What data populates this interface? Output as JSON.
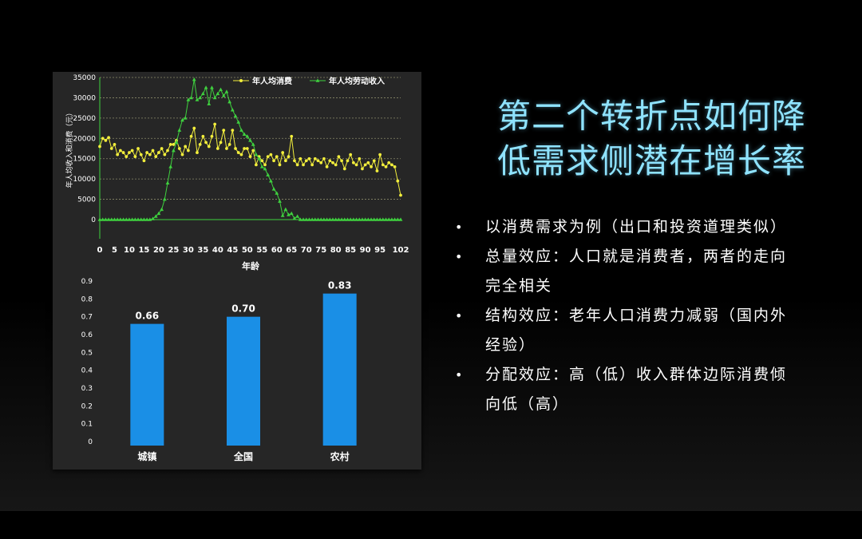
{
  "slide": {
    "title_line1": "第二个转折点如何降",
    "title_line2": "低需求侧潜在增长率",
    "bullets": [
      "以消费需求为例（出口和投资道理类似）",
      "总量效应：人口就是消费者，两者的走向完全相关",
      "结构效应：老年人口消费力减弱（国内外经验）",
      "分配效应：高（低）收入群体边际消费倾向低（高）"
    ],
    "bullet_symbol": "•"
  },
  "chart_data": [
    {
      "type": "line",
      "title": "",
      "xlabel": "年龄",
      "ylabel": "年人均收入和消费（元）",
      "xlim": [
        0,
        102
      ],
      "ylim": [
        0,
        35000
      ],
      "x_ticks": [
        "0",
        "5",
        "10",
        "15",
        "20",
        "25",
        "30",
        "35",
        "40",
        "45",
        "50",
        "55",
        "60",
        "65",
        "70",
        "75",
        "80",
        "85",
        "90",
        "95",
        "102"
      ],
      "y_ticks": [
        "0",
        "5000",
        "10000",
        "15000",
        "20000",
        "25000",
        "30000",
        "35000"
      ],
      "grid": "horizontal dashed",
      "legend_position": "top-right",
      "x": [
        0,
        1,
        2,
        3,
        4,
        5,
        6,
        7,
        8,
        9,
        10,
        11,
        12,
        13,
        14,
        15,
        16,
        17,
        18,
        19,
        20,
        21,
        22,
        23,
        24,
        25,
        26,
        27,
        28,
        29,
        30,
        31,
        32,
        33,
        34,
        35,
        36,
        37,
        38,
        39,
        40,
        41,
        42,
        43,
        44,
        45,
        46,
        47,
        48,
        49,
        50,
        51,
        52,
        53,
        54,
        55,
        56,
        57,
        58,
        59,
        60,
        61,
        62,
        63,
        64,
        65,
        66,
        67,
        68,
        69,
        70,
        71,
        72,
        73,
        74,
        75,
        76,
        77,
        78,
        79,
        80,
        81,
        82,
        83,
        84,
        85,
        86,
        87,
        88,
        89,
        90,
        91,
        92,
        93,
        94,
        95,
        96,
        97,
        98,
        99,
        100,
        101,
        102
      ],
      "series": [
        {
          "name": "年人均消费",
          "color": "#f2ee3c",
          "values": [
            18000,
            20000,
            19500,
            20200,
            17500,
            18500,
            16000,
            17000,
            16500,
            15500,
            16500,
            17000,
            15500,
            17500,
            16000,
            14500,
            16500,
            16000,
            17000,
            15500,
            16500,
            17500,
            16000,
            17000,
            18500,
            18500,
            19500,
            17500,
            16000,
            18000,
            17000,
            20500,
            22500,
            16500,
            18500,
            20500,
            19000,
            18000,
            20500,
            23500,
            17500,
            19000,
            22000,
            17500,
            18500,
            22000,
            17500,
            16500,
            16000,
            17500,
            17500,
            15500,
            17000,
            13500,
            15500,
            14500,
            13500,
            15500,
            16000,
            14500,
            15500,
            13500,
            16500,
            14500,
            15500,
            20500,
            14500,
            13500,
            15000,
            13500,
            14500,
            15000,
            13500,
            15000,
            14500,
            14000,
            15000,
            13000,
            14500,
            14000,
            13500,
            15500,
            14500,
            12500,
            14500,
            16000,
            14000,
            13500,
            15000,
            12500,
            13500,
            14000,
            13000,
            14500,
            12000,
            16000,
            13500,
            13000,
            14000,
            13500,
            13000,
            9500,
            6000
          ]
        },
        {
          "name": "年人均劳动收入",
          "color": "#3fd13f",
          "values": [
            0,
            0,
            0,
            0,
            0,
            0,
            0,
            0,
            0,
            0,
            0,
            0,
            0,
            0,
            0,
            0,
            0,
            0,
            200,
            800,
            1500,
            2500,
            5000,
            9000,
            13000,
            17000,
            19000,
            22000,
            24500,
            25000,
            29500,
            30000,
            34500,
            29500,
            30000,
            31000,
            32500,
            28500,
            32500,
            30000,
            31000,
            32000,
            30500,
            31500,
            29000,
            27000,
            25500,
            24000,
            22000,
            21000,
            20500,
            19500,
            18500,
            16000,
            15000,
            13000,
            12500,
            11000,
            9500,
            7500,
            6500,
            4500,
            1000,
            2500,
            1200,
            1500,
            300,
            800,
            0,
            0,
            0,
            0,
            0,
            0,
            0,
            0,
            0,
            0,
            0,
            0,
            0,
            0,
            0,
            0,
            0,
            0,
            0,
            0,
            0,
            0,
            0,
            0,
            0,
            0,
            0,
            0,
            0,
            0,
            0,
            0,
            0,
            0,
            0
          ]
        }
      ]
    },
    {
      "type": "bar",
      "title": "",
      "categories": [
        "城镇",
        "全国",
        "农村"
      ],
      "values": [
        0.66,
        0.7,
        0.83
      ],
      "data_labels": [
        "0.66",
        "0.70",
        "0.83"
      ],
      "ylim": [
        0,
        0.9
      ],
      "y_ticks": [
        "0",
        "0.1",
        "0.2",
        "0.3",
        "0.4",
        "0.5",
        "0.6",
        "0.7",
        "0.8",
        "0.9"
      ],
      "bar_color": "#1a8fe6",
      "grid": false
    }
  ]
}
